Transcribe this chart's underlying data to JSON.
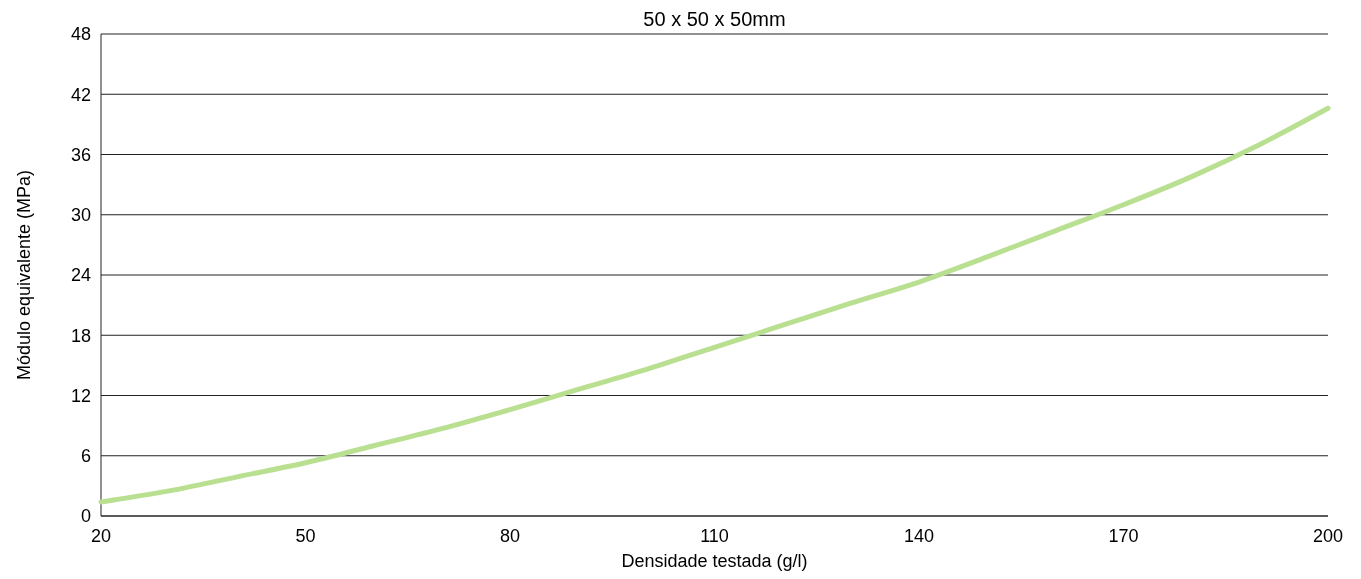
{
  "chart_data": {
    "type": "line",
    "title": "50 x 50 x 50mm",
    "xlabel": "Densidade testada (g/l)",
    "ylabel": "Módulo equivalente (MPa)",
    "x": [
      20,
      30,
      40,
      50,
      60,
      70,
      80,
      90,
      100,
      110,
      120,
      130,
      140,
      150,
      160,
      170,
      180,
      190,
      200
    ],
    "series": [
      {
        "color": "#b9df90",
        "values": [
          1.4,
          2.5,
          3.9,
          5.3,
          7.0,
          8.7,
          10.6,
          12.6,
          14.6,
          16.8,
          19.0,
          21.2,
          23.3,
          25.8,
          28.4,
          31.0,
          33.8,
          37.0,
          40.6
        ]
      }
    ],
    "xlim": [
      20,
      200
    ],
    "xticks": [
      20,
      50,
      80,
      110,
      140,
      170,
      200
    ],
    "ylim": [
      0,
      48
    ],
    "yticks": [
      0,
      6,
      12,
      18,
      24,
      30,
      36,
      42,
      48
    ],
    "grid": "y",
    "marker": "none",
    "line_style": "solid"
  }
}
